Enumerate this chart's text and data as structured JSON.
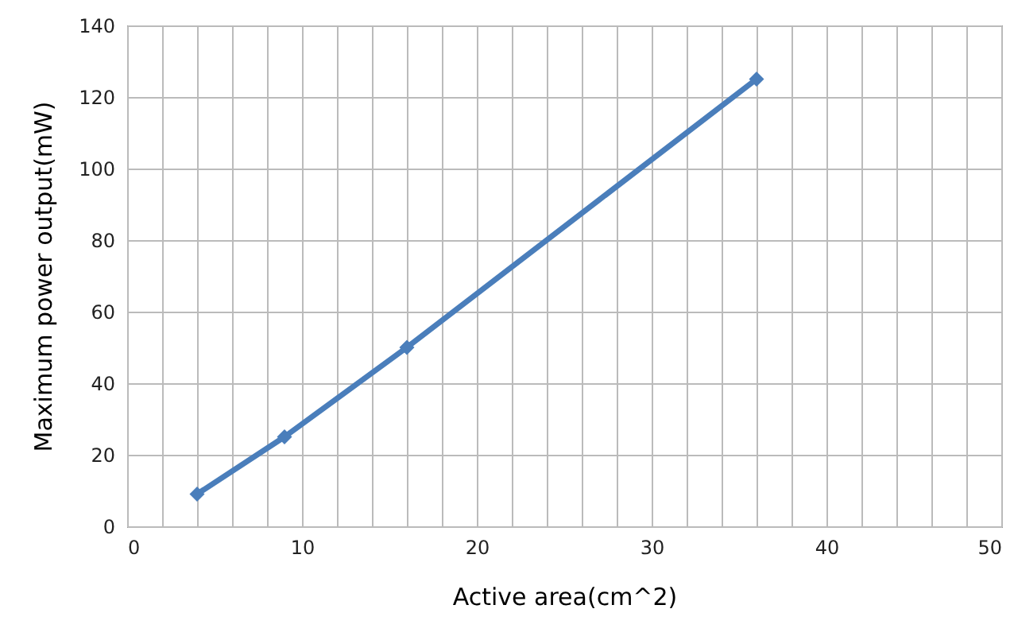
{
  "chart_data": {
    "type": "line",
    "xlabel": "Active area(cm^2)",
    "ylabel": "Maximum power output(mW)",
    "x": [
      4,
      9,
      16,
      36
    ],
    "series": [
      {
        "color": "#4a7ebb",
        "values": [
          9,
          25,
          50,
          125
        ]
      }
    ],
    "xlim": [
      0,
      50
    ],
    "ylim": [
      0,
      140
    ],
    "xticks": [
      0,
      {
        "value": 2,
        "label": null
      },
      {
        "value": 4,
        "label": null
      },
      {
        "value": 6,
        "label": null
      },
      {
        "value": 8,
        "label": null
      },
      10,
      {
        "value": 12,
        "label": null
      },
      {
        "value": 14,
        "label": null
      },
      {
        "value": 16,
        "label": null
      },
      {
        "value": 18,
        "label": null
      },
      20,
      {
        "value": 22,
        "label": null
      },
      {
        "value": 24,
        "label": null
      },
      {
        "value": 26,
        "label": null
      },
      {
        "value": 28,
        "label": null
      },
      30,
      {
        "value": 32,
        "label": null
      },
      {
        "value": 34,
        "label": null
      },
      {
        "value": 36,
        "label": null
      },
      {
        "value": 38,
        "label": null
      },
      40,
      {
        "value": 42,
        "label": null
      },
      {
        "value": 44,
        "label": null
      },
      {
        "value": 46,
        "label": null
      },
      {
        "value": 48,
        "label": null
      },
      50
    ],
    "yticks": [
      0,
      20,
      40,
      60,
      80,
      100,
      120,
      140
    ],
    "grid": true,
    "marker": "diamond",
    "line_style": "solid"
  }
}
